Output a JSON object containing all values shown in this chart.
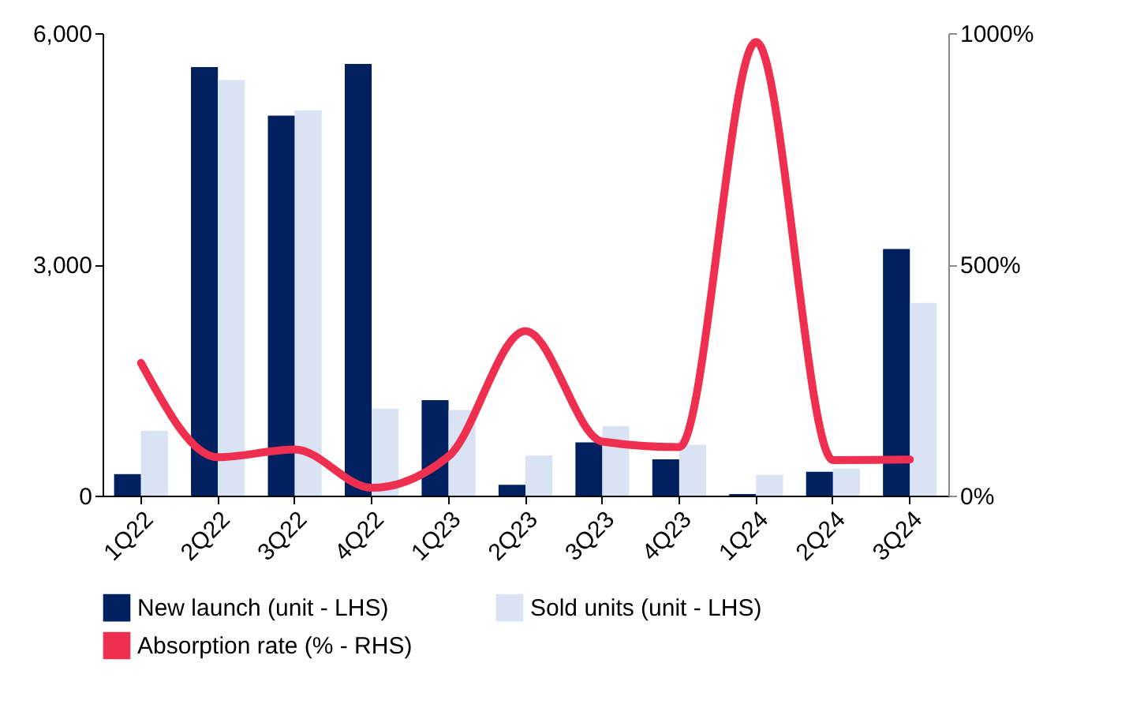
{
  "chart_data": {
    "type": "bar",
    "categories": [
      "1Q22",
      "2Q22",
      "3Q22",
      "4Q22",
      "1Q23",
      "2Q23",
      "3Q23",
      "4Q23",
      "1Q24",
      "2Q24",
      "3Q24"
    ],
    "series": [
      {
        "name": "New launch (unit - LHS)",
        "color": "#002060",
        "values": [
          280,
          5560,
          4930,
          5600,
          1240,
          140,
          690,
          470,
          20,
          310,
          3200
        ]
      },
      {
        "name": "Sold units (unit - LHS)",
        "color": "#dae3f3",
        "values": [
          840,
          5390,
          5000,
          1130,
          1110,
          520,
          900,
          660,
          270,
          350,
          2500
        ]
      },
      {
        "name": "Absorption rate (% - RHS)",
        "color": "#ee2f4f",
        "type": "line",
        "axis": "y2",
        "values": [
          287,
          83,
          100,
          17,
          85,
          356,
          117,
          105,
          981,
          77,
          78
        ]
      }
    ],
    "ylim": [
      0,
      6000
    ],
    "yticks": [
      0,
      {
        "value": 3000,
        "label": "3,000"
      },
      {
        "value": 6000,
        "label": "6,000"
      }
    ],
    "y2lim": [
      0,
      1000
    ],
    "y2ticks": [
      {
        "value": 0,
        "label": "0%"
      },
      {
        "value": 500,
        "label": "500%"
      },
      {
        "value": 1000,
        "label": "1000%"
      }
    ],
    "legend": "bottom",
    "grid": false
  }
}
